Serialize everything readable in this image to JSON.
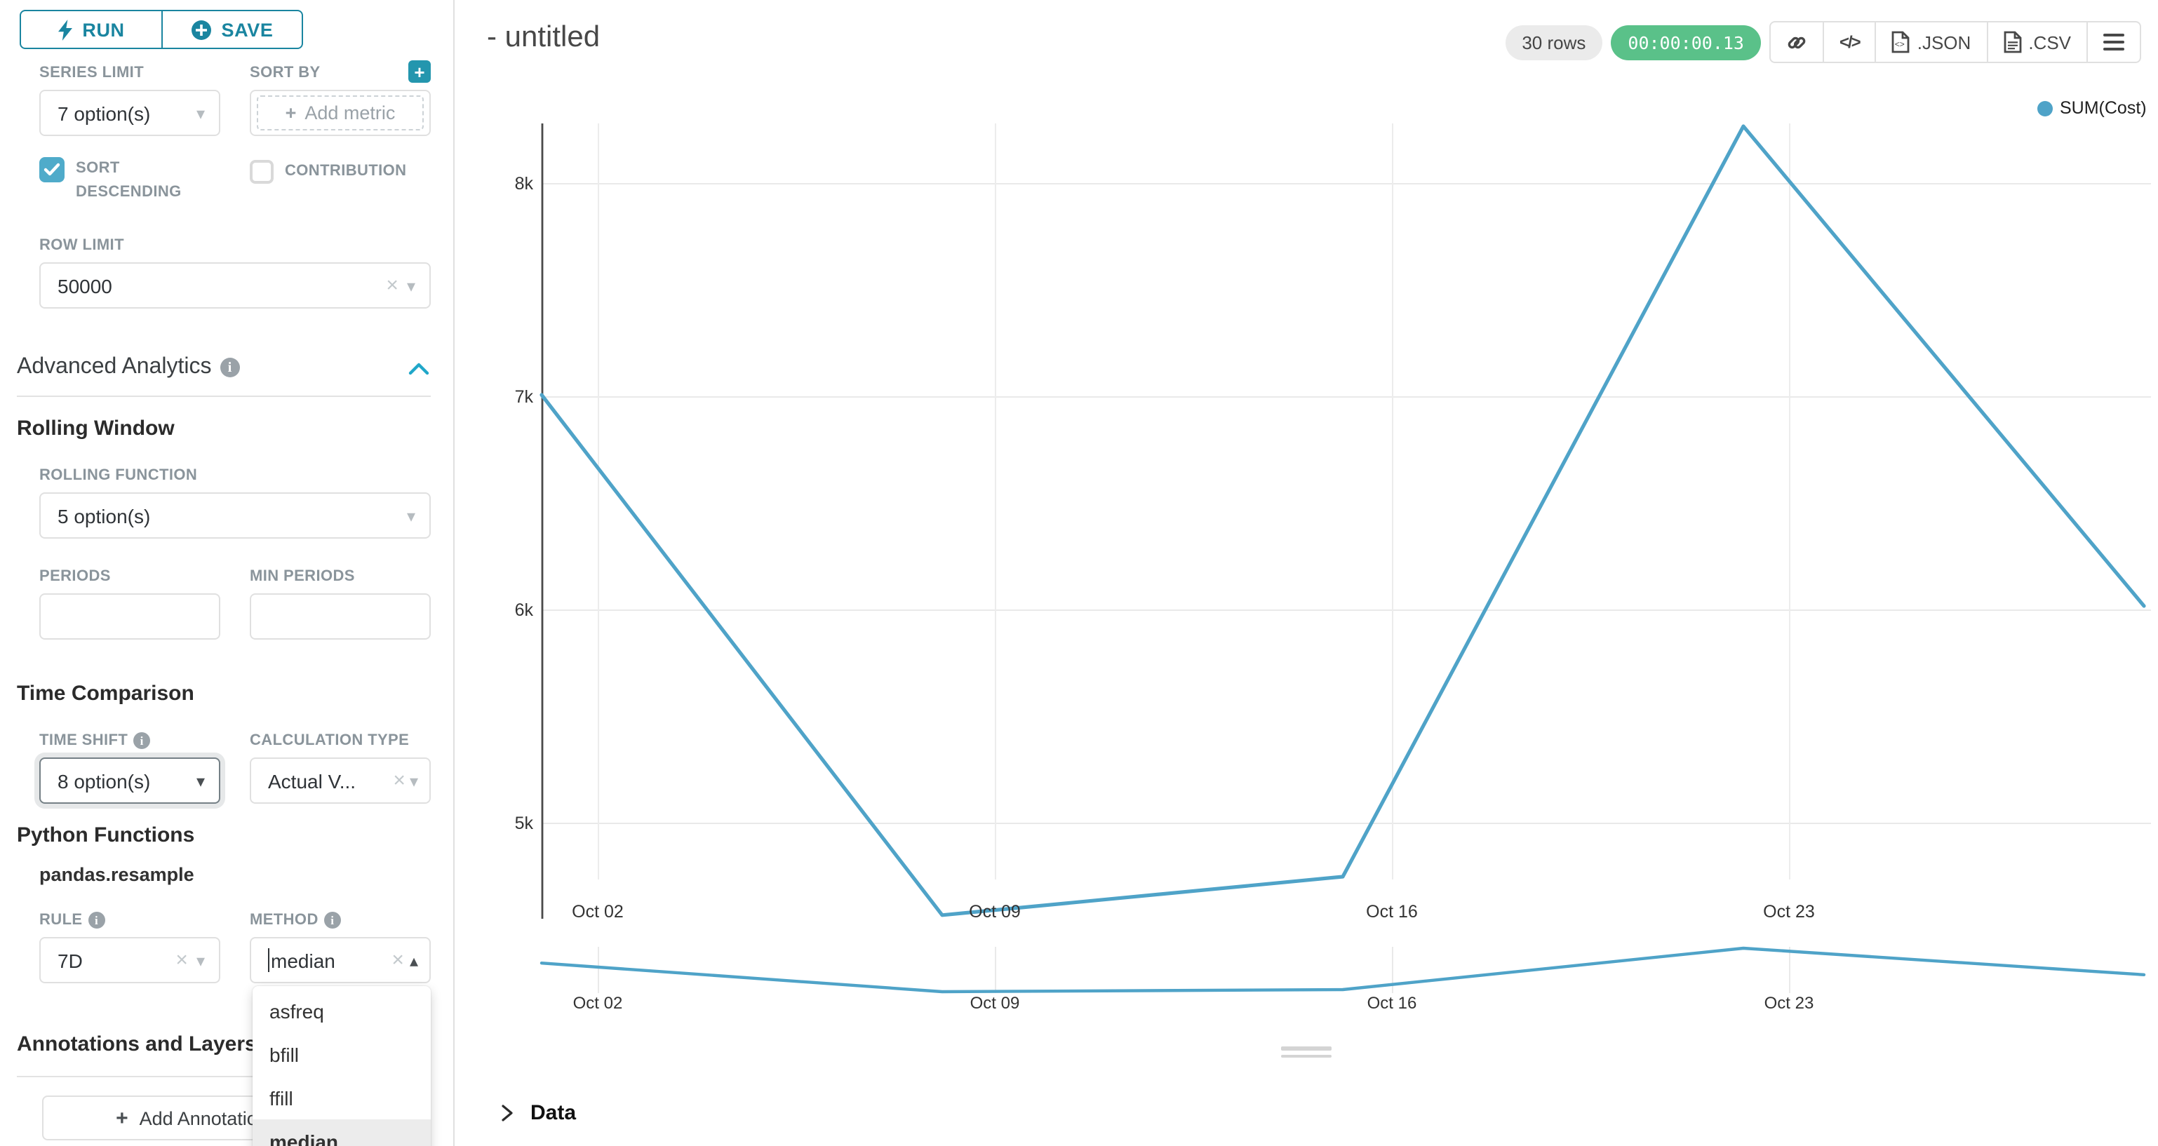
{
  "colors": {
    "primary_teal": "#1a85a0",
    "accent_teal": "#20a7c9",
    "checkbox_teal": "#4fabca",
    "series_line": "#4fa3c8",
    "timer_green": "#5ac189",
    "label_gray": "#8a949b"
  },
  "sidebar": {
    "run": {
      "label": "RUN"
    },
    "save": {
      "label": "SAVE"
    },
    "series_limit": {
      "label": "SERIES LIMIT",
      "value": "7 option(s)"
    },
    "sort_by": {
      "label": "SORT BY",
      "placeholder": "Add metric"
    },
    "sort_descending": {
      "label": "SORT DESCENDING",
      "checked": true
    },
    "contribution": {
      "label": "CONTRIBUTION",
      "checked": false
    },
    "row_limit": {
      "label": "ROW LIMIT",
      "value": "50000"
    },
    "advanced_analytics": {
      "title": "Advanced Analytics"
    },
    "rolling_window": {
      "title": "Rolling Window",
      "rolling_function": {
        "label": "ROLLING FUNCTION",
        "value": "5 option(s)"
      },
      "periods": {
        "label": "PERIODS",
        "value": ""
      },
      "min_periods": {
        "label": "MIN PERIODS",
        "value": ""
      }
    },
    "time_comparison": {
      "title": "Time Comparison",
      "time_shift": {
        "label": "TIME SHIFT",
        "value": "8 option(s)"
      },
      "calculation_type": {
        "label": "CALCULATION TYPE",
        "value": "Actual V..."
      }
    },
    "python_functions": {
      "title": "Python Functions",
      "subtitle": "pandas.resample",
      "rule": {
        "label": "RULE",
        "value": "7D"
      },
      "method": {
        "label": "METHOD",
        "value": "median",
        "dropdown": {
          "items": [
            "asfreq",
            "bfill",
            "ffill",
            "median"
          ],
          "active": "median"
        }
      }
    },
    "annotations": {
      "title": "Annotations and Layers",
      "add_button": "Add Annotation Layer"
    }
  },
  "header": {
    "title": "- untitled",
    "rows_badge": "30 rows",
    "timer": "00:00:00.13",
    "export_json": ".JSON",
    "export_csv": ".CSV"
  },
  "chart_data": {
    "type": "line",
    "series": [
      {
        "name": "SUM(Cost)",
        "x": [
          "Oct 01",
          "Oct 08",
          "Oct 15",
          "Oct 22",
          "Oct 29"
        ],
        "values": [
          7010,
          4570,
          4750,
          8270,
          6020
        ]
      }
    ],
    "x_tick_labels": [
      "Oct 02",
      "Oct 09",
      "Oct 16",
      "Oct 23"
    ],
    "y_tick_labels": [
      "8k",
      "7k",
      "6k",
      "5k"
    ],
    "y_tick_values": [
      8000,
      7000,
      6000,
      5000
    ],
    "ylim": [
      4400,
      8500
    ],
    "grid": true,
    "legend_position": "top-right",
    "has_mini_preview": true
  },
  "data_panel": {
    "title": "Data"
  }
}
